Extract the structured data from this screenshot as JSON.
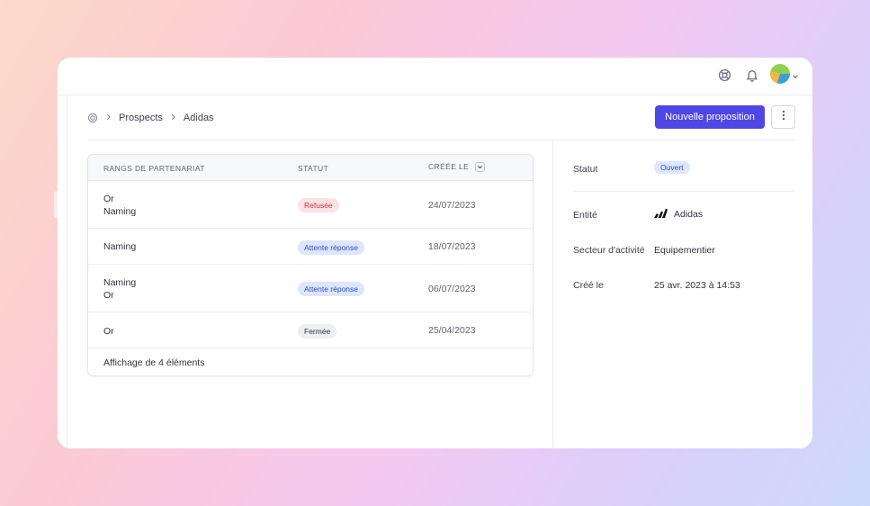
{
  "breadcrumb": {
    "items": [
      "Prospects",
      "Adidas"
    ]
  },
  "actions": {
    "new_proposal": "Nouvelle proposition"
  },
  "table": {
    "headers": {
      "rank": "RANGS DE PARTENARIAT",
      "status": "STATUT",
      "created": "CRÉÉE LE"
    },
    "rows": [
      {
        "rank_line1": "Or",
        "rank_line2": "Naming",
        "status": "Refusée",
        "date": "24/07/2023"
      },
      {
        "rank_line1": "Naming",
        "rank_line2": "",
        "status": "Attente réponse",
        "date": "18/07/2023"
      },
      {
        "rank_line1": "Naming",
        "rank_line2": "Or",
        "status": "Attente réponse",
        "date": "06/07/2023"
      },
      {
        "rank_line1": "Or",
        "rank_line2": "",
        "status": "Fermée",
        "date": "25/04/2023"
      }
    ],
    "footer": "Affichage de 4 éléments"
  },
  "details": {
    "status_label": "Statut",
    "status_value": "Ouvert",
    "entity_label": "Entité",
    "entity_value": "Adidas",
    "sector_label": "Secteur d'activité",
    "sector_value": "Equipementier",
    "created_label": "Créé le",
    "created_value": "25 avr. 2023 à 14:53"
  },
  "colors": {
    "accent": "#4f46e5",
    "refused": "#fde2e4",
    "waiting": "#dde6fd"
  },
  "icons": [
    "help-buoy-icon",
    "bell-icon",
    "avatar",
    "chevron-down-icon",
    "home-icon",
    "chevron-right-icon",
    "more-vertical-icon",
    "sort-icon",
    "adidas-logo"
  ]
}
